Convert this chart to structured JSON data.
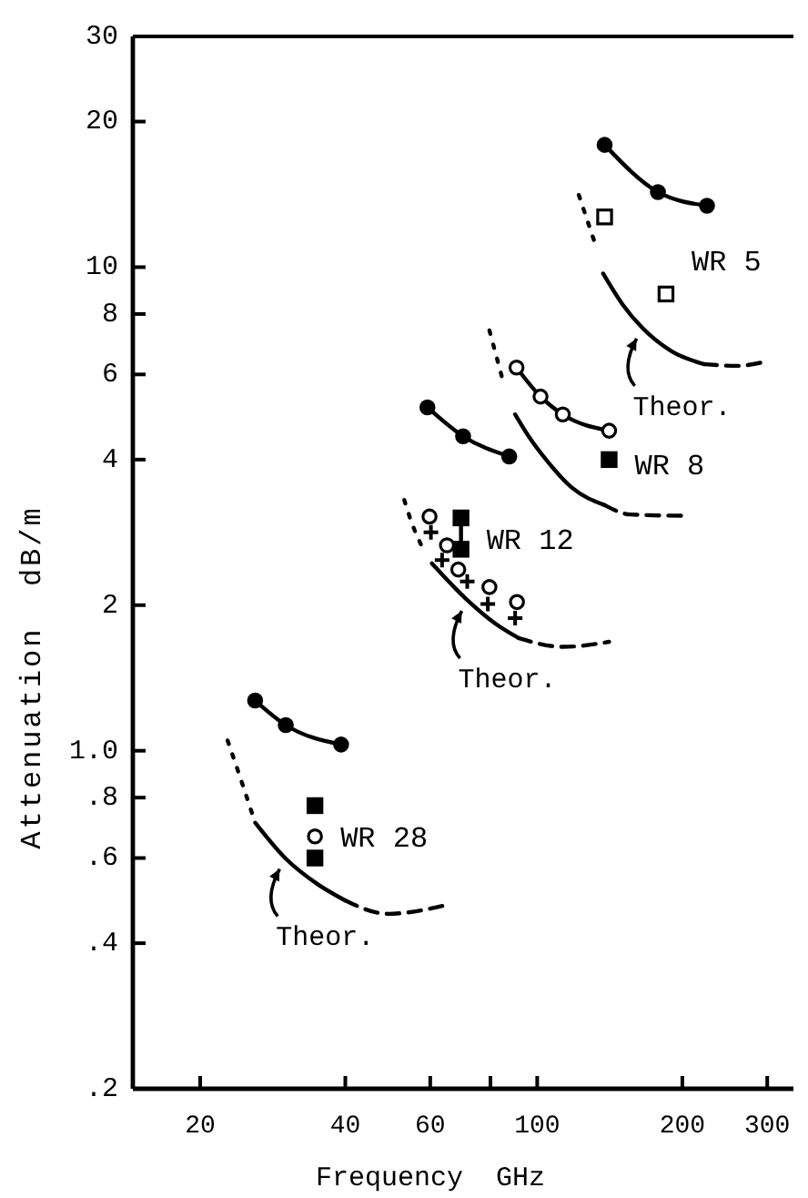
{
  "chart_data": {
    "type": "line",
    "xlabel": "Frequency  GHz",
    "ylabel": "Attenuation  dB/m",
    "log": "xy",
    "grid": false,
    "xlim": [
      14.5,
      340
    ],
    "xticks": [
      20,
      40,
      60,
      {
        "value": 80,
        "label": null
      },
      100,
      200,
      300
    ],
    "ylim": [
      0.2,
      30
    ],
    "yticks": [
      30,
      20,
      10,
      8,
      6,
      4,
      2,
      {
        "value": 1,
        "label": "1.0"
      },
      {
        "value": 0.8,
        "label": ".8"
      },
      {
        "value": 0.6,
        "label": ".6"
      },
      {
        "value": 0.4,
        "label": ".4"
      },
      {
        "value": 0.2,
        "label": ".2"
      }
    ],
    "series": [
      {
        "color": "#000000",
        "marker": "circle",
        "line_style": "solid",
        "x": [
          138,
          178,
          225
        ],
        "values": [
          17.9,
          14.3,
          13.4
        ]
      },
      {
        "type": "scatter",
        "name": "WR 5",
        "color": "#ffffff",
        "marker": "square",
        "x": [
          138,
          185
        ],
        "values": [
          12.7,
          8.8
        ]
      },
      {
        "color": "#000000",
        "marker": "none",
        "line_style": "dotted",
        "x": [
          122,
          133
        ],
        "values": [
          14.1,
          10.9
        ]
      },
      {
        "name": "Theor.",
        "color": "#000000",
        "marker": "none",
        "line_style": "solid",
        "x": [
          137,
          150,
          165,
          190,
          222
        ],
        "values": [
          9.7,
          8.4,
          7.5,
          6.7,
          6.3
        ]
      },
      {
        "color": "#000000",
        "marker": "none",
        "line_style": "dashed",
        "x": [
          222,
          260,
          294
        ],
        "values": [
          6.3,
          6.25,
          6.36
        ]
      },
      {
        "color": "#000000",
        "marker": "none",
        "line_style": "solid",
        "x": [
          90.6,
          101.6,
          113,
          141
        ],
        "values": [
          6.2,
          5.4,
          4.96,
          4.59
        ]
      },
      {
        "type": "scatter",
        "color": "#ffffff",
        "marker": "circle",
        "x": [
          90.6,
          101.6,
          113,
          141
        ],
        "values": [
          6.2,
          5.4,
          4.96,
          4.59
        ]
      },
      {
        "type": "scatter",
        "name": "WR 8",
        "color": "#000000",
        "marker": "square",
        "x": [
          141
        ],
        "values": [
          4.0
        ]
      },
      {
        "color": "#000000",
        "marker": "none",
        "line_style": "dotted",
        "x": [
          79.6,
          85
        ],
        "values": [
          7.4,
          5.8
        ]
      },
      {
        "color": "#000000",
        "marker": "none",
        "line_style": "solid",
        "x": [
          90,
          97,
          104.5,
          118,
          138
        ],
        "values": [
          4.96,
          4.4,
          3.99,
          3.5,
          3.22
        ]
      },
      {
        "color": "#000000",
        "marker": "none",
        "line_style": "dashed",
        "x": [
          138,
          156,
          205
        ],
        "values": [
          3.22,
          3.08,
          3.06
        ]
      },
      {
        "color": "#000000",
        "marker": "circle",
        "line_style": "solid",
        "x": [
          59.2,
          70.2,
          87.5
        ],
        "values": [
          5.13,
          4.47,
          4.06
        ]
      },
      {
        "type": "scatter",
        "color": "#ffffff",
        "marker": "circle",
        "x": [
          59.8,
          65,
          68.6,
          79.6,
          90.8
        ],
        "values": [
          3.05,
          2.66,
          2.37,
          2.18,
          2.03
        ]
      },
      {
        "type": "scatter",
        "color": "#000000",
        "marker": "cross",
        "x": [
          60.2,
          63.5,
          71.6,
          79,
          90
        ],
        "values": [
          2.83,
          2.48,
          2.24,
          2.01,
          1.88
        ]
      },
      {
        "name": "WR 12",
        "color": "#000000",
        "marker": "square",
        "line_style": "solid",
        "x": [
          69.5,
          69.5
        ],
        "values": [
          3.03,
          2.61
        ]
      },
      {
        "color": "#000000",
        "marker": "none",
        "line_style": "dotted",
        "x": [
          53,
          55,
          57.5
        ],
        "values": [
          3.3,
          2.95,
          2.66
        ]
      },
      {
        "name": "Theor.",
        "color": "#000000",
        "marker": "none",
        "line_style": "solid",
        "x": [
          60.5,
          71.6,
          82,
          91.5
        ],
        "values": [
          2.44,
          2.05,
          1.83,
          1.71
        ]
      },
      {
        "color": "#000000",
        "marker": "none",
        "line_style": "dashed",
        "x": [
          91.5,
          113,
          141
        ],
        "values": [
          1.71,
          1.64,
          1.68
        ]
      },
      {
        "color": "#000000",
        "marker": "circle",
        "line_style": "solid",
        "x": [
          26,
          30.1,
          39.2
        ],
        "values": [
          1.27,
          1.13,
          1.03
        ]
      },
      {
        "type": "scatter",
        "name": "WR 28",
        "color": "#000000",
        "marker": "square",
        "x": [
          34.6,
          34.6
        ],
        "values": [
          0.77,
          0.6
        ]
      },
      {
        "type": "scatter",
        "color": "#ffffff",
        "marker": "circle",
        "x": [
          34.6
        ],
        "values": [
          0.665
        ]
      },
      {
        "color": "#000000",
        "marker": "none",
        "line_style": "dotted",
        "x": [
          22.8,
          24.5,
          26
        ],
        "values": [
          1.05,
          0.85,
          0.71
        ]
      },
      {
        "name": "Theor.",
        "color": "#000000",
        "marker": "none",
        "line_style": "solid",
        "x": [
          26,
          30,
          35,
          40
        ],
        "values": [
          0.71,
          0.6,
          0.53,
          0.49
        ]
      },
      {
        "color": "#000000",
        "marker": "none",
        "line_style": "dashed",
        "x": [
          40,
          49,
          65
        ],
        "values": [
          0.49,
          0.46,
          0.48
        ]
      }
    ]
  }
}
